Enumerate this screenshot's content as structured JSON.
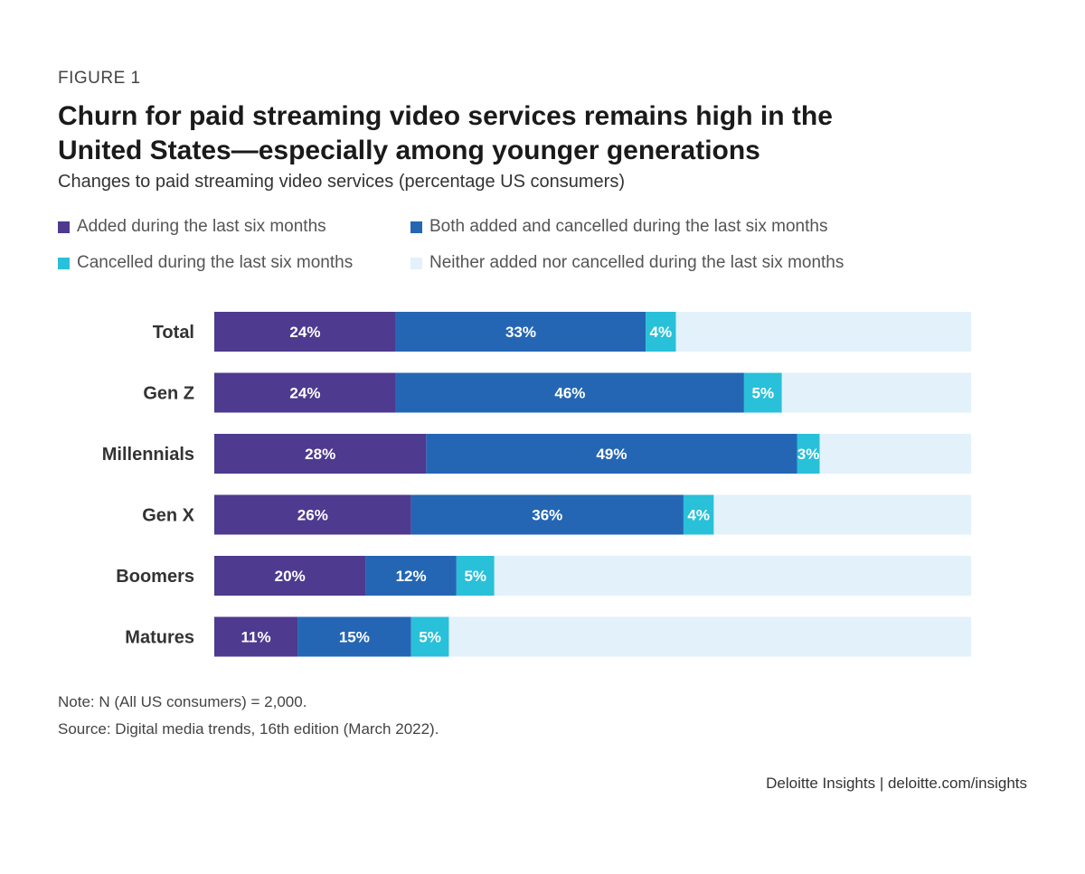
{
  "figure_label": "FIGURE 1",
  "chart_data": {
    "type": "bar",
    "orientation": "horizontal",
    "stacked": true,
    "title": "Churn for paid streaming video services remains high in the United States—especially among younger generations",
    "subtitle": "Changes to paid streaming video services (percentage US consumers)",
    "categories": [
      "Total",
      "Gen Z",
      "Millennials",
      "Gen X",
      "Boomers",
      "Matures"
    ],
    "series": [
      {
        "name": "Added during the last six months",
        "color": "#4e3a8f",
        "values": [
          24,
          24,
          28,
          26,
          20,
          11
        ],
        "labels": [
          "24%",
          "24%",
          "28%",
          "26%",
          "20%",
          "11%"
        ]
      },
      {
        "name": "Both added and cancelled during the last six months",
        "color": "#2466b4",
        "values": [
          33,
          46,
          49,
          36,
          12,
          15
        ],
        "labels": [
          "33%",
          "46%",
          "49%",
          "36%",
          "12%",
          "15%"
        ]
      },
      {
        "name": "Cancelled during the last six months",
        "color": "#29c0d9",
        "values": [
          4,
          5,
          3,
          4,
          5,
          5
        ],
        "labels": [
          "4%",
          "5%",
          "3%",
          "4%",
          "5%",
          "5%"
        ]
      },
      {
        "name": "Neither added nor cancelled during the last six months",
        "color": "#e3f1fb",
        "values": [
          39,
          25,
          20,
          34,
          63,
          69
        ],
        "labels": []
      }
    ],
    "xlim": [
      0,
      100
    ],
    "legend_position": "top",
    "grid": false
  },
  "note": "Note: N (All US consumers) = 2,000.",
  "source": "Source: Digital media trends, 16th edition (March 2022).",
  "credit": "Deloitte Insights | deloitte.com/insights"
}
